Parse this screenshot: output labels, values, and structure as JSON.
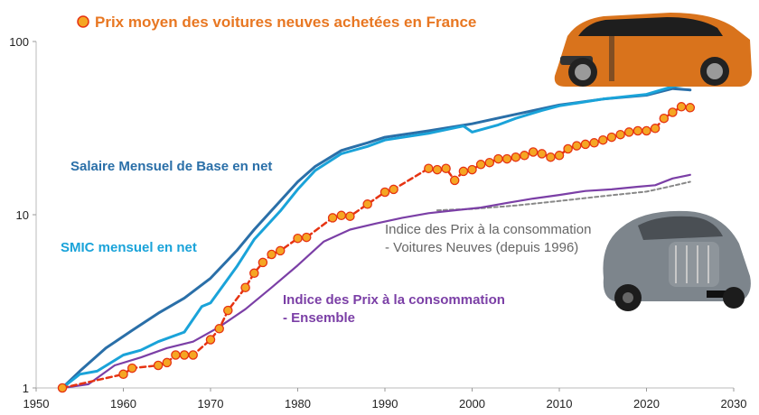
{
  "chart_data": {
    "type": "line",
    "title": "Prix moyen des voitures neuves achetées en France",
    "xlim": [
      1950,
      2030
    ],
    "ylim": [
      1,
      100
    ],
    "yscale": "log",
    "xticks": [
      "1950",
      "1960",
      "1970",
      "1980",
      "1990",
      "2000",
      "2010",
      "2020",
      "2030"
    ],
    "yticks": [
      "1",
      "10",
      "100"
    ],
    "grid": false,
    "colors": {
      "salaire": "#2a6fa8",
      "smic": "#1aa3d9",
      "ipc": "#7b3fa6",
      "ipc_vn": "#888888",
      "prix": "#e63312",
      "marker_fill": "#f5a623"
    },
    "annotations": {
      "salaire": "Salaire Mensuel de Base en net",
      "smic": "SMIC mensuel en net",
      "ipc_line1": "Indice des Prix à la consommation",
      "ipc_line2": "- Ensemble",
      "ipcvn_line1": "Indice des Prix à la consommation",
      "ipcvn_line2": "- Voitures Neuves (depuis 1996)"
    },
    "images": [
      "orange-suv-car-photo",
      "grey-vintage-car-photo"
    ],
    "series": [
      {
        "id": "salaire",
        "x": [
          1953,
          1955,
          1958,
          1961,
          1964,
          1967,
          1970,
          1973,
          1975,
          1978,
          1980,
          1982,
          1985,
          1988,
          1990,
          1995,
          2000,
          2005,
          2010,
          2015,
          2020,
          2023,
          2025
        ],
        "values": [
          1.0,
          1.25,
          1.7,
          2.15,
          2.7,
          3.3,
          4.3,
          6.2,
          8.2,
          12.0,
          15.5,
          19.0,
          23.5,
          26.0,
          28.0,
          30.5,
          33.5,
          38.0,
          43.0,
          46.5,
          49.0,
          53.5,
          52.5
        ]
      },
      {
        "id": "smic",
        "x": [
          1953,
          1955,
          1957,
          1960,
          1962,
          1964,
          1967,
          1969,
          1970,
          1973,
          1975,
          1978,
          1980,
          1982,
          1985,
          1988,
          1990,
          1995,
          1999,
          2000,
          2003,
          2005,
          2008,
          2010,
          2015,
          2020,
          2023,
          2025
        ],
        "values": [
          1.0,
          1.2,
          1.25,
          1.55,
          1.65,
          1.85,
          2.1,
          2.95,
          3.1,
          5.0,
          7.2,
          10.5,
          14.0,
          18.0,
          22.5,
          24.8,
          27.0,
          29.5,
          32.5,
          30.0,
          33.0,
          36.0,
          40.0,
          42.5,
          46.5,
          49.5,
          55.0,
          56.5
        ]
      },
      {
        "id": "ipc",
        "x": [
          1953,
          1956,
          1959,
          1962,
          1965,
          1968,
          1971,
          1974,
          1977,
          1980,
          1983,
          1986,
          1989,
          1992,
          1995,
          1998,
          2001,
          2004,
          2007,
          2010,
          2013,
          2016,
          2019,
          2021,
          2023,
          2025
        ],
        "values": [
          1.0,
          1.05,
          1.35,
          1.5,
          1.7,
          1.85,
          2.25,
          2.85,
          3.8,
          5.1,
          7.0,
          8.2,
          8.9,
          9.6,
          10.2,
          10.6,
          11.0,
          11.7,
          12.4,
          13.0,
          13.7,
          14.0,
          14.5,
          14.8,
          16.2,
          17.0
        ]
      },
      {
        "id": "ipc_vn",
        "x": [
          1996,
          2000,
          2005,
          2010,
          2015,
          2020,
          2022,
          2025
        ],
        "values": [
          10.6,
          10.8,
          11.3,
          12.0,
          12.8,
          13.6,
          14.3,
          15.5
        ]
      },
      {
        "id": "prix",
        "x": [
          1953,
          1960,
          1961,
          1964,
          1965,
          1966,
          1967,
          1968,
          1970,
          1971,
          1972,
          1974,
          1975,
          1976,
          1977,
          1978,
          1980,
          1981,
          1984,
          1985,
          1986,
          1988,
          1990,
          1991,
          1995,
          1996,
          1997,
          1998,
          1999,
          2000,
          2001,
          2002,
          2003,
          2004,
          2005,
          2006,
          2007,
          2008,
          2009,
          2010,
          2011,
          2012,
          2013,
          2014,
          2015,
          2016,
          2017,
          2018,
          2019,
          2020,
          2021,
          2022,
          2023,
          2024,
          2025
        ],
        "values": [
          1.0,
          1.2,
          1.3,
          1.35,
          1.4,
          1.55,
          1.55,
          1.55,
          1.9,
          2.2,
          2.8,
          3.8,
          4.6,
          5.3,
          5.9,
          6.2,
          7.3,
          7.4,
          9.6,
          9.9,
          9.8,
          11.5,
          13.5,
          14.0,
          18.5,
          18.2,
          18.5,
          15.8,
          17.8,
          18.2,
          19.5,
          20.0,
          21.0,
          21.0,
          21.5,
          22.0,
          23.0,
          22.5,
          21.5,
          22.0,
          24.0,
          25.0,
          25.5,
          26.0,
          27.0,
          28.0,
          29.0,
          30.0,
          30.5,
          30.5,
          31.5,
          36.0,
          39.0,
          42.0,
          41.5
        ]
      }
    ]
  }
}
